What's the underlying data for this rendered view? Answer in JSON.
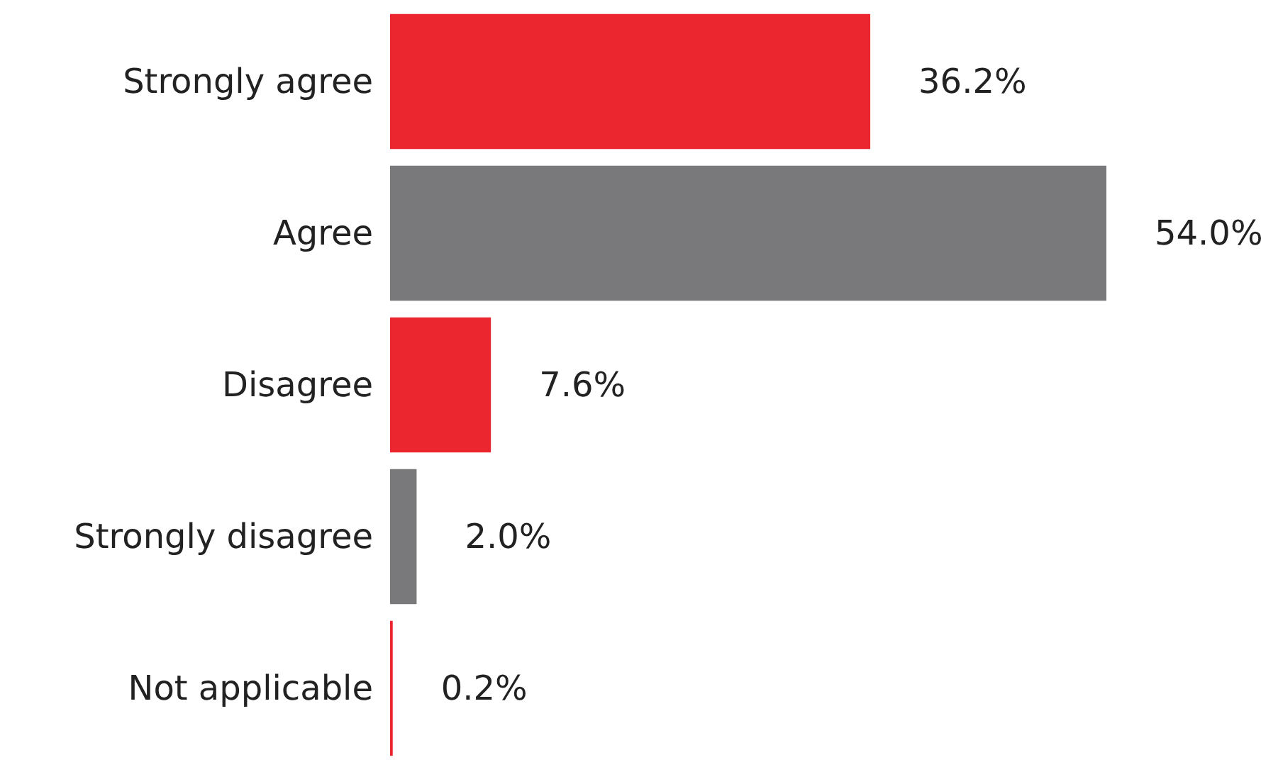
{
  "chart_data": {
    "type": "bar",
    "orientation": "horizontal",
    "categories": [
      "Strongly agree",
      "Agree",
      "Disagree",
      "Strongly disagree",
      "Not applicable"
    ],
    "values": [
      36.2,
      54.0,
      7.6,
      2.0,
      0.2
    ],
    "colors": [
      "#ec262f",
      "#79797b",
      "#ec262f",
      "#79797b",
      "#ec262f"
    ],
    "value_labels": [
      "36.2%",
      "54.0%",
      "7.6%",
      "2.0%",
      "0.2%"
    ]
  }
}
